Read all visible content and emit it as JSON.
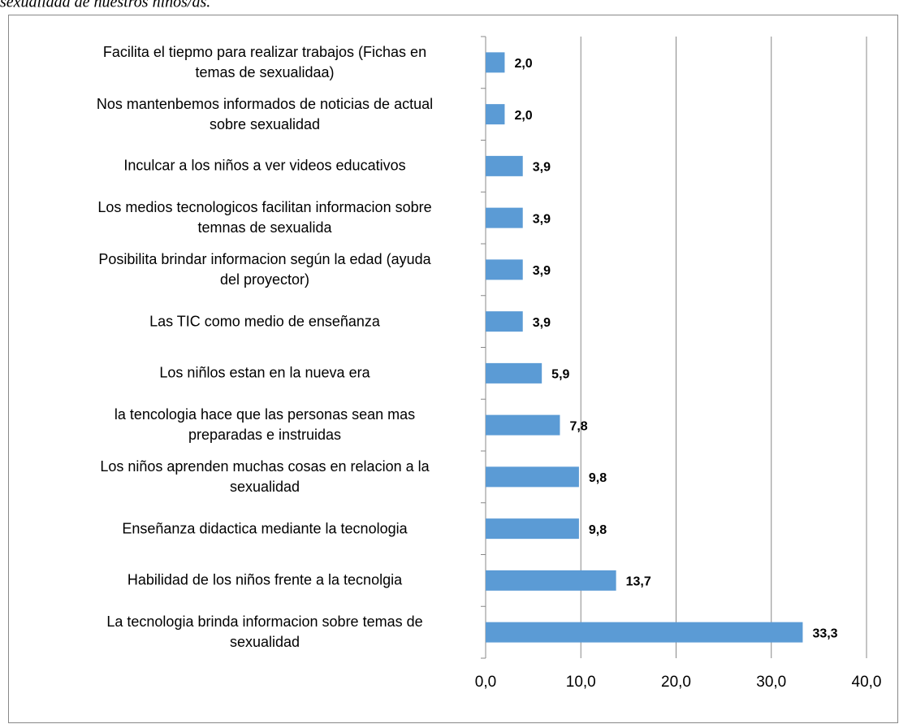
{
  "caption": "sexualidad de nuestros niños/as.",
  "chart_data": {
    "type": "bar",
    "orientation": "horizontal",
    "categories": [
      "Facilita el tiepmo para realizar trabajos (Fichas en\ntemas de sexualidaa)",
      "Nos mantenbemos informados de noticias de actual\nsobre sexualidad",
      "Inculcar a los niños a ver videos educativos",
      "Los medios tecnologicos facilitan informacion sobre\ntemnas de sexualida",
      "Posibilita brindar informacion según la edad (ayuda\ndel proyector)",
      "Las TIC como medio de enseñanza",
      "Los niñlos estan en la nueva era",
      "la tencologia hace que las personas sean mas\npreparadas e instruidas",
      "Los niños aprenden muchas cosas en relacion a la\nsexualidad",
      "Enseñanza didactica mediante la tecnologia",
      "Habilidad de los niños frente a la tecnolgia",
      "La tecnologia brinda informacion sobre temas de\nsexualidad"
    ],
    "values": [
      2.0,
      2.0,
      3.9,
      3.9,
      3.9,
      3.9,
      5.9,
      7.8,
      9.8,
      9.8,
      13.7,
      33.3
    ],
    "value_labels": [
      "2,0",
      "2,0",
      "3,9",
      "3,9",
      "3,9",
      "3,9",
      "5,9",
      "7,8",
      "9,8",
      "9,8",
      "13,7",
      "33,3"
    ],
    "color": "#5b9bd5",
    "xlim": [
      0,
      40
    ],
    "xticks": [
      {
        "value": 0,
        "label": "0,0"
      },
      {
        "value": 10,
        "label": "10,0"
      },
      {
        "value": 20,
        "label": "20,0"
      },
      {
        "value": 30,
        "label": "30,0"
      },
      {
        "value": 40,
        "label": "40,0"
      }
    ],
    "grid": true
  }
}
